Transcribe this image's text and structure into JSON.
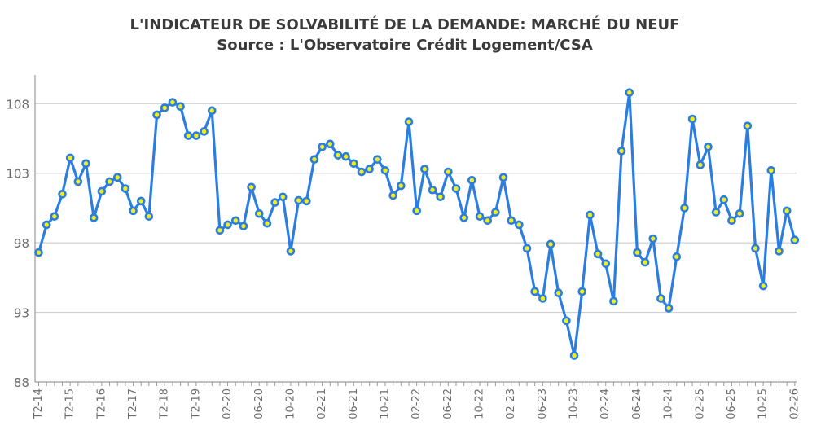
{
  "chart_data": {
    "type": "line",
    "title": "L'INDICATEUR DE SOLVABILITÉ DE LA DEMANDE: MARCHÉ DU NEUF",
    "subtitle": "Source : L'Observatoire Crédit Logement/CSA",
    "xlabel": "",
    "ylabel": "",
    "ylim": [
      88,
      110
    ],
    "y_ticks": [
      88,
      93,
      98,
      103,
      108
    ],
    "x_tick_labels": [
      "T2-14",
      "T2-15",
      "T2-16",
      "T2-17",
      "T2-18",
      "T2-19",
      "02-20",
      "06-20",
      "10-20",
      "02-21",
      "06-21",
      "10-21",
      "02-22",
      "06-22",
      "10-22",
      "02-23",
      "06-23",
      "10-23",
      "02-24",
      "06-24",
      "10-24",
      "02-25",
      "06-25",
      "10-25",
      "02-26"
    ],
    "x_tick_label_every": 4,
    "grid": "horizontal",
    "line_color": "#2b7de0",
    "marker_color": "#f2ee1a",
    "series": [
      {
        "values": [
          97.3,
          99.3,
          99.9,
          101.5,
          104.1,
          102.4,
          103.7,
          99.8,
          101.7,
          102.4,
          102.7,
          101.9,
          100.3,
          101.0,
          99.9,
          107.2,
          107.7,
          108.1,
          107.8,
          105.7,
          105.7,
          106.0,
          107.5,
          98.9,
          99.3,
          99.6,
          99.2,
          102.0,
          100.1,
          99.4,
          100.9,
          101.3,
          97.4,
          101.05,
          101.0,
          104.0,
          104.9,
          105.1,
          104.3,
          104.2,
          103.7,
          103.1,
          103.3,
          104.0,
          103.2,
          101.4,
          102.1,
          106.7,
          100.3,
          103.3,
          101.8,
          101.3,
          103.1,
          101.9,
          99.8,
          102.5,
          99.9,
          99.6,
          100.2,
          102.7,
          99.6,
          99.3,
          97.6,
          94.5,
          94.0,
          97.9,
          94.4,
          92.4,
          89.9,
          94.5,
          100.0,
          97.2,
          96.5,
          93.8,
          104.6,
          108.8,
          97.3,
          96.6,
          98.3,
          94.0,
          93.3,
          97.0,
          100.5,
          106.9,
          103.6,
          104.9,
          100.2,
          101.1,
          99.6,
          100.1,
          106.4,
          97.6,
          94.9,
          103.2,
          97.4,
          100.3,
          98.2
        ]
      }
    ]
  }
}
